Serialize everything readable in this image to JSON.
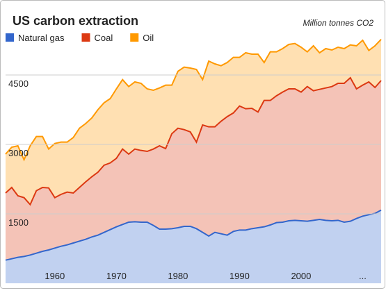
{
  "chart_data": {
    "type": "stacked-area",
    "title": "US carbon extraction",
    "subtitle": "Million tonnes CO2",
    "x": [
      1952,
      1953,
      1954,
      1955,
      1956,
      1957,
      1958,
      1959,
      1960,
      1961,
      1962,
      1963,
      1964,
      1965,
      1966,
      1967,
      1968,
      1969,
      1970,
      1971,
      1972,
      1973,
      1974,
      1975,
      1976,
      1977,
      1978,
      1979,
      1980,
      1981,
      1982,
      1983,
      1984,
      1985,
      1986,
      1987,
      1988,
      1989,
      1990,
      1991,
      1992,
      1993,
      1994,
      1995,
      1996,
      1997,
      1998,
      1999,
      2000,
      2001,
      2002,
      2003,
      2004,
      2005,
      2006,
      2007,
      2008,
      2009,
      2010,
      2011,
      2012,
      2013
    ],
    "series": [
      {
        "name": "Natural gas",
        "color": "#3366cc",
        "values": [
          500,
          530,
          560,
          580,
          610,
          650,
          690,
          720,
          760,
          800,
          830,
          870,
          910,
          950,
          1000,
          1040,
          1100,
          1160,
          1220,
          1270,
          1320,
          1330,
          1320,
          1320,
          1250,
          1170,
          1170,
          1180,
          1200,
          1230,
          1230,
          1180,
          1100,
          1020,
          1100,
          1070,
          1040,
          1120,
          1150,
          1150,
          1180,
          1200,
          1220,
          1260,
          1310,
          1320,
          1350,
          1360,
          1350,
          1340,
          1360,
          1380,
          1360,
          1350,
          1360,
          1320,
          1340,
          1400,
          1450,
          1480,
          1510,
          1580
        ]
      },
      {
        "name": "Coal",
        "color": "#dc3912",
        "values": [
          1450,
          1540,
          1330,
          1270,
          1090,
          1350,
          1380,
          1340,
          1090,
          1120,
          1140,
          1080,
          1160,
          1240,
          1300,
          1360,
          1450,
          1440,
          1480,
          1630,
          1470,
          1570,
          1550,
          1530,
          1650,
          1800,
          1740,
          2050,
          2150,
          2090,
          2040,
          1870,
          2320,
          2360,
          2280,
          2430,
          2560,
          2560,
          2680,
          2620,
          2600,
          2500,
          2730,
          2690,
          2740,
          2810,
          2850,
          2840,
          2780,
          2910,
          2800,
          2810,
          2860,
          2900,
          2960,
          3000,
          3100,
          2800,
          2830,
          2870,
          2720,
          2800
        ]
      },
      {
        "name": "Oil",
        "color": "#ff9900",
        "values": [
          840,
          870,
          1080,
          820,
          1270,
          1170,
          1100,
          840,
          1170,
          1130,
          1080,
          1200,
          1280,
          1260,
          1270,
          1350,
          1350,
          1390,
          1500,
          1500,
          1460,
          1450,
          1450,
          1350,
          1270,
          1250,
          1370,
          1050,
          1230,
          1350,
          1380,
          1570,
          980,
          1420,
          1360,
          1200,
          1170,
          1200,
          1050,
          1210,
          1170,
          1250,
          820,
          1050,
          950,
          940,
          960,
          980,
          970,
          750,
          970,
          790,
          850,
          790,
          780,
          750,
          710,
          930,
          970,
          680,
          900,
          890
        ]
      }
    ],
    "xlim": [
      1952,
      2013
    ],
    "xticks": [
      1960,
      1970,
      1980,
      1990,
      2000,
      {
        "value": 2010,
        "label": "..."
      }
    ],
    "ylim": [
      0,
      6000
    ],
    "yticks": [
      1500,
      3000,
      4500
    ],
    "grid": true,
    "legend": "top-left"
  }
}
